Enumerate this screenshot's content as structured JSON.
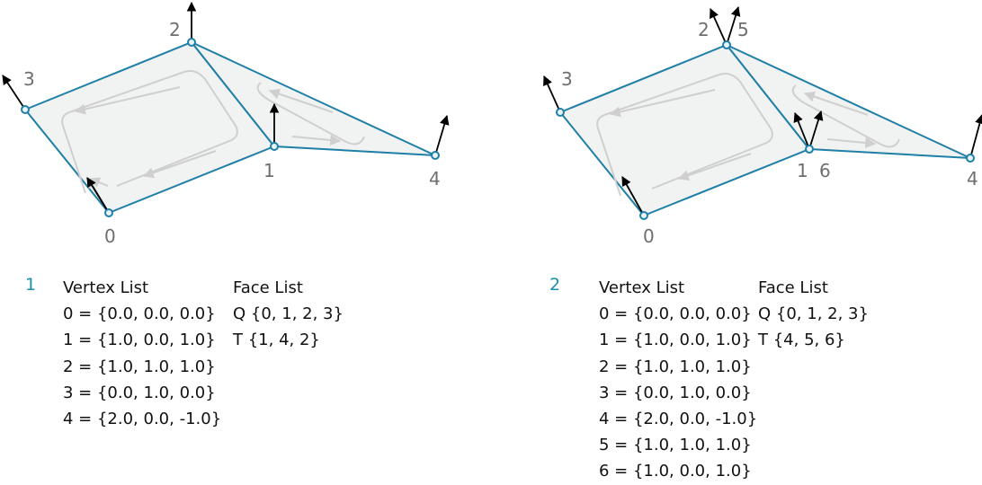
{
  "panels": [
    {
      "number": "1",
      "vertex_header": "Vertex List",
      "vertices": [
        "0 = {0.0, 0.0, 0.0}",
        "1 = {1.0, 0.0, 1.0}",
        "2 = {1.0, 1.0, 1.0}",
        "3 = {0.0, 1.0, 0.0}",
        "4 = {2.0, 0.0, -1.0}"
      ],
      "face_header": "Face List",
      "faces": [
        "Q {0, 1, 2, 3}",
        "T {1, 4, 2}"
      ],
      "vertex_labels": [
        "0",
        "1",
        "2",
        "3",
        "4"
      ]
    },
    {
      "number": "2",
      "vertex_header": "Vertex List",
      "vertices": [
        "0 = {0.0, 0.0, 0.0}",
        "1 = {1.0, 0.0, 1.0}",
        "2 = {1.0, 1.0, 1.0}",
        "3 = {0.0, 1.0, 0.0}",
        "4 = {2.0, 0.0, -1.0}",
        "5 = {1.0, 1.0, 1.0}",
        "6 = {1.0, 0.0, 1.0}"
      ],
      "face_header": "Face List",
      "faces": [
        "Q {0, 1, 2, 3}",
        "T {4, 5, 6}"
      ],
      "vertex_labels": [
        "0",
        "1",
        "2",
        "3",
        "4",
        "5",
        "6"
      ]
    }
  ],
  "colors": {
    "edge": "#1f7fa6",
    "fill": "#f1f2f2",
    "panel_number": "#1a8fb0",
    "winding_arrows": "#cfcfcf"
  }
}
